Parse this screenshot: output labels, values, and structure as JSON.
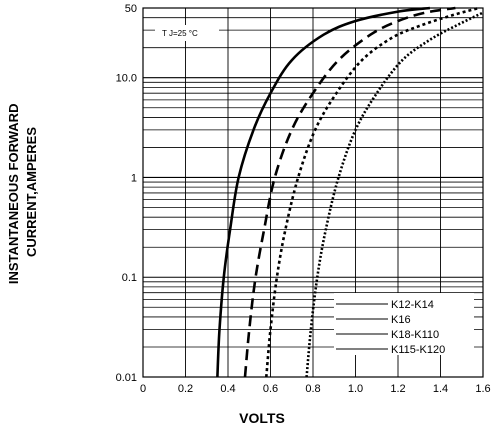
{
  "chart_data": {
    "type": "line",
    "title": "",
    "xlabel": "VOLTS",
    "ylabel_lines": [
      "INSTANTANEOUS FORWARD",
      "CURRENT,AMPERES"
    ],
    "annotation": "T J=25 °C",
    "x_scale": "linear",
    "y_scale": "log",
    "xlim": [
      0,
      1.6
    ],
    "ylim": [
      0.01,
      50
    ],
    "x_ticks": [
      0,
      0.2,
      0.4,
      0.6,
      0.8,
      1.0,
      1.2,
      1.4,
      1.6
    ],
    "x_tick_labels": [
      "0",
      "0.2",
      "0.4",
      "0.6",
      "0.8",
      "1.0",
      "1.2",
      "1.4",
      "1.6"
    ],
    "y_ticks": [
      0.01,
      0.1,
      1,
      10,
      50
    ],
    "y_tick_labels": [
      "0.01",
      "0.1",
      "1",
      "10.0",
      "50"
    ],
    "grid": true,
    "legend_position": "bottom-right",
    "series": [
      {
        "name": "K12-K14",
        "dash": "solid",
        "points": [
          [
            0.35,
            0.01
          ],
          [
            0.36,
            0.03
          ],
          [
            0.38,
            0.1
          ],
          [
            0.41,
            0.3
          ],
          [
            0.45,
            1
          ],
          [
            0.52,
            3
          ],
          [
            0.6,
            7
          ],
          [
            0.7,
            15
          ],
          [
            0.85,
            27
          ],
          [
            1.0,
            37
          ],
          [
            1.2,
            46
          ],
          [
            1.35,
            50
          ]
        ]
      },
      {
        "name": "K16",
        "dash": "dashed",
        "points": [
          [
            0.48,
            0.01
          ],
          [
            0.5,
            0.03
          ],
          [
            0.53,
            0.1
          ],
          [
            0.57,
            0.3
          ],
          [
            0.62,
            1
          ],
          [
            0.7,
            3
          ],
          [
            0.8,
            7
          ],
          [
            0.92,
            15
          ],
          [
            1.07,
            27
          ],
          [
            1.2,
            37
          ],
          [
            1.33,
            45
          ],
          [
            1.47,
            50
          ]
        ]
      },
      {
        "name": "K18-K110",
        "dash": "dotted",
        "points": [
          [
            0.58,
            0.01
          ],
          [
            0.6,
            0.03
          ],
          [
            0.63,
            0.1
          ],
          [
            0.67,
            0.3
          ],
          [
            0.73,
            1
          ],
          [
            0.81,
            3
          ],
          [
            0.91,
            7
          ],
          [
            1.03,
            15
          ],
          [
            1.17,
            25
          ],
          [
            1.3,
            33
          ],
          [
            1.45,
            42
          ],
          [
            1.58,
            50
          ]
        ]
      },
      {
        "name": "K115-K120",
        "dash": "densedot",
        "points": [
          [
            0.77,
            0.01
          ],
          [
            0.79,
            0.03
          ],
          [
            0.82,
            0.1
          ],
          [
            0.86,
            0.3
          ],
          [
            0.92,
            1
          ],
          [
            1.0,
            3
          ],
          [
            1.1,
            7
          ],
          [
            1.22,
            15
          ],
          [
            1.35,
            24
          ],
          [
            1.47,
            33
          ],
          [
            1.6,
            45
          ]
        ]
      }
    ]
  }
}
